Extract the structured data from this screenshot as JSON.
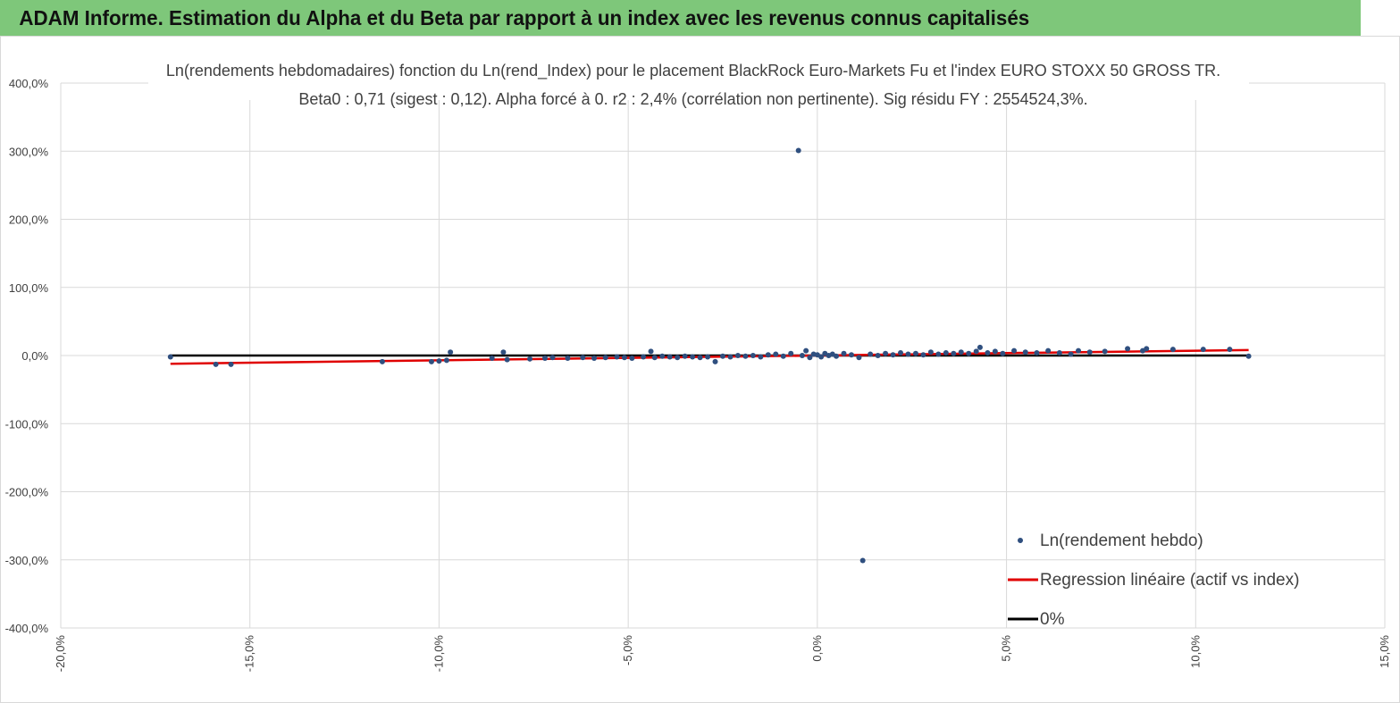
{
  "header": {
    "title": "ADAM Informe. Estimation du Alpha et du Beta par rapport à un index avec les revenus connus capitalisés"
  },
  "colors": {
    "banner": "#7ec77a",
    "points": "#2f4f7f",
    "regression": "#e00000",
    "zero_line": "#000000",
    "grid": "#d9d9d9"
  },
  "chart_data": {
    "type": "scatter",
    "title_line1": "Ln(rendements hebdomadaires) fonction du Ln(rend_Index) pour le placement BlackRock Euro-Markets Fu  et l'index EURO STOXX 50 GROSS TR.",
    "title_line2": "Beta0 : 0,71 (sigest : 0,12). Alpha forcé à 0. r2 : 2,4% (corrélation non pertinente). Sig résidu FY : 2554524,3%.",
    "xlim": [
      -20,
      15
    ],
    "ylim": [
      -400,
      400
    ],
    "x_ticks": [
      -20,
      -15,
      -10,
      -5,
      0,
      5,
      10,
      15
    ],
    "y_ticks": [
      400,
      300,
      200,
      100,
      0,
      -100,
      -200,
      -300,
      -400
    ],
    "x_tick_labels": [
      "-20,0%",
      "-15,0%",
      "-10,0%",
      "-5,0%",
      "0,0%",
      "5,0%",
      "10,0%",
      "15,0%"
    ],
    "y_tick_labels": [
      "400,0%",
      "300,0%",
      "200,0%",
      "100,0%",
      "0,0%",
      "-100,0%",
      "-200,0%",
      "-300,0%",
      "-400,0%"
    ],
    "grid": true,
    "legend_position": "bottom-right",
    "series": [
      {
        "name": "Ln(rendement hebdo)",
        "kind": "scatter",
        "points": [
          [
            -17.1,
            -2
          ],
          [
            -15.9,
            -13
          ],
          [
            -15.5,
            -13
          ],
          [
            -11.5,
            -9
          ],
          [
            -10.2,
            -9
          ],
          [
            -10.0,
            -8
          ],
          [
            -9.8,
            -7
          ],
          [
            -9.7,
            5
          ],
          [
            -8.6,
            -4
          ],
          [
            -8.3,
            5
          ],
          [
            -8.2,
            -6
          ],
          [
            -7.6,
            -5
          ],
          [
            -7.2,
            -4
          ],
          [
            -7.0,
            -3
          ],
          [
            -6.6,
            -4
          ],
          [
            -6.2,
            -3
          ],
          [
            -5.9,
            -4
          ],
          [
            -5.6,
            -3
          ],
          [
            -5.3,
            -2
          ],
          [
            -5.1,
            -3
          ],
          [
            -4.9,
            -4
          ],
          [
            -4.6,
            -2
          ],
          [
            -4.4,
            6
          ],
          [
            -4.3,
            -3
          ],
          [
            -4.1,
            -1
          ],
          [
            -3.9,
            -2
          ],
          [
            -3.7,
            -3
          ],
          [
            -3.5,
            -1
          ],
          [
            -3.3,
            -2
          ],
          [
            -3.1,
            -3
          ],
          [
            -2.9,
            -2
          ],
          [
            -2.7,
            -9
          ],
          [
            -2.5,
            -1
          ],
          [
            -2.3,
            -2
          ],
          [
            -2.1,
            0
          ],
          [
            -1.9,
            -1
          ],
          [
            -1.7,
            0
          ],
          [
            -1.5,
            -2
          ],
          [
            -1.3,
            1
          ],
          [
            -1.1,
            2
          ],
          [
            -0.9,
            -1
          ],
          [
            -0.7,
            3
          ],
          [
            -0.5,
            301
          ],
          [
            -0.4,
            0
          ],
          [
            -0.3,
            7
          ],
          [
            -0.2,
            -3
          ],
          [
            -0.1,
            2
          ],
          [
            0.0,
            1
          ],
          [
            0.1,
            -2
          ],
          [
            0.2,
            3
          ],
          [
            0.3,
            0
          ],
          [
            0.4,
            2
          ],
          [
            0.5,
            -1
          ],
          [
            0.7,
            3
          ],
          [
            0.9,
            1
          ],
          [
            1.1,
            -3
          ],
          [
            1.2,
            -301
          ],
          [
            1.4,
            2
          ],
          [
            1.6,
            0
          ],
          [
            1.8,
            3
          ],
          [
            2.0,
            1
          ],
          [
            2.2,
            4
          ],
          [
            2.4,
            2
          ],
          [
            2.6,
            3
          ],
          [
            2.8,
            1
          ],
          [
            3.0,
            5
          ],
          [
            3.2,
            2
          ],
          [
            3.4,
            4
          ],
          [
            3.6,
            3
          ],
          [
            3.8,
            5
          ],
          [
            4.0,
            3
          ],
          [
            4.2,
            6
          ],
          [
            4.3,
            12
          ],
          [
            4.5,
            4
          ],
          [
            4.7,
            6
          ],
          [
            4.9,
            3
          ],
          [
            5.2,
            7
          ],
          [
            5.5,
            5
          ],
          [
            5.8,
            4
          ],
          [
            6.1,
            7
          ],
          [
            6.4,
            4
          ],
          [
            6.7,
            2
          ],
          [
            6.9,
            7
          ],
          [
            7.2,
            5
          ],
          [
            7.6,
            6
          ],
          [
            8.2,
            10
          ],
          [
            8.6,
            7
          ],
          [
            8.7,
            10
          ],
          [
            9.4,
            9
          ],
          [
            10.2,
            9
          ],
          [
            10.9,
            9
          ],
          [
            11.4,
            -1
          ]
        ]
      },
      {
        "name": "Regression linéaire (actif vs index)",
        "kind": "line",
        "points": [
          [
            -17.1,
            -12.1
          ],
          [
            11.4,
            8.1
          ]
        ]
      },
      {
        "name": "0%",
        "kind": "line",
        "points": [
          [
            -17.1,
            0
          ],
          [
            11.4,
            0
          ]
        ]
      }
    ]
  }
}
